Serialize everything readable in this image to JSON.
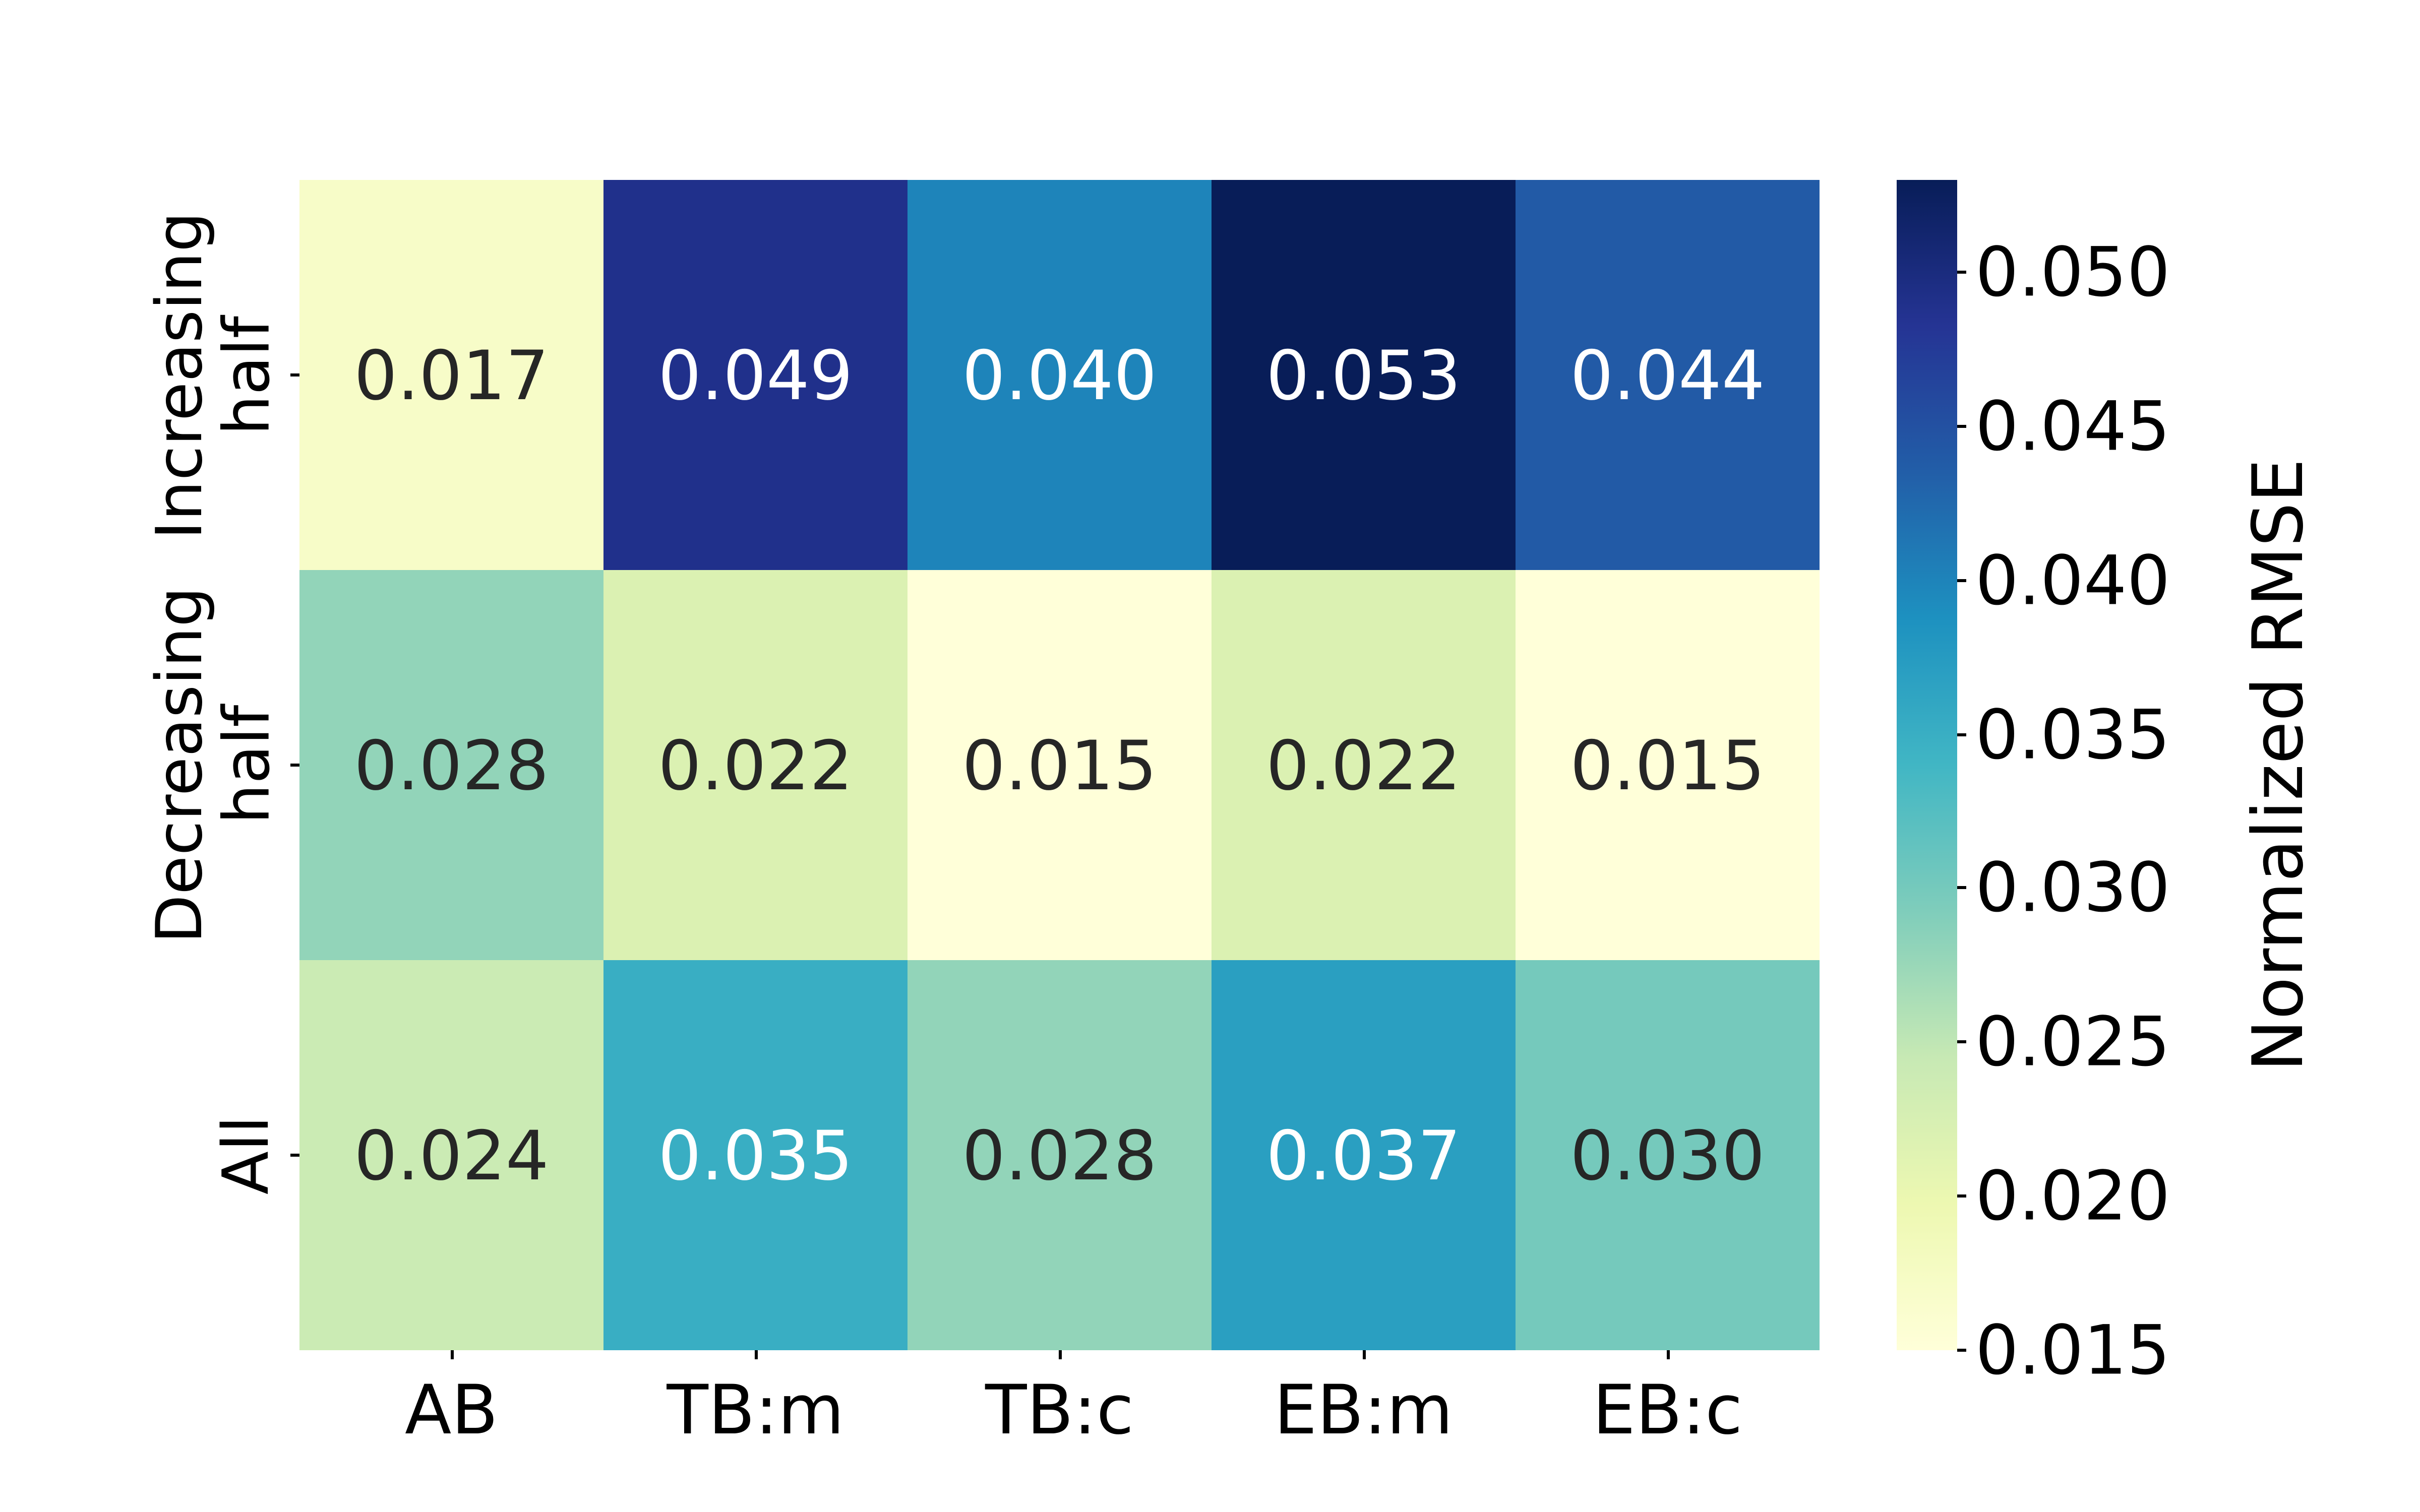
{
  "chart_data": {
    "type": "heatmap",
    "x_tick_labels": [
      "AB",
      "TB:m",
      "TB:c",
      "EB:m",
      "EB:c"
    ],
    "y_tick_labels": [
      "Increasing\nhalf",
      "Decreasing\nhalf",
      "All"
    ],
    "values": [
      [
        0.017,
        0.049,
        0.04,
        0.053,
        0.044
      ],
      [
        0.028,
        0.022,
        0.015,
        0.022,
        0.015
      ],
      [
        0.024,
        0.035,
        0.028,
        0.037,
        0.03
      ]
    ],
    "cell_labels": [
      [
        "0.017",
        "0.049",
        "0.040",
        "0.053",
        "0.044"
      ],
      [
        "0.028",
        "0.022",
        "0.015",
        "0.022",
        "0.015"
      ],
      [
        "0.024",
        "0.035",
        "0.028",
        "0.037",
        "0.030"
      ]
    ],
    "vmin": 0.015,
    "vmax": 0.053,
    "colormap_name": "YlGnBu",
    "colormap_stops": [
      "#ffffd9",
      "#edf8b1",
      "#c7e9b4",
      "#7fcdbb",
      "#41b6c4",
      "#1d91c0",
      "#225ea8",
      "#253494",
      "#081d58"
    ],
    "colorbar": {
      "label": "Normalized RMSE",
      "tick_labels": [
        "0.050",
        "0.045",
        "0.040",
        "0.035",
        "0.030",
        "0.025",
        "0.020",
        "0.015"
      ],
      "tick_values": [
        0.05,
        0.045,
        0.04,
        0.035,
        0.03,
        0.025,
        0.02,
        0.015
      ]
    },
    "annotation_colors": {
      "light": "#ffffff",
      "dark": "#262626"
    },
    "tick_color": "#000000",
    "background": "#ffffff",
    "grid": false,
    "legend_position": "right"
  }
}
